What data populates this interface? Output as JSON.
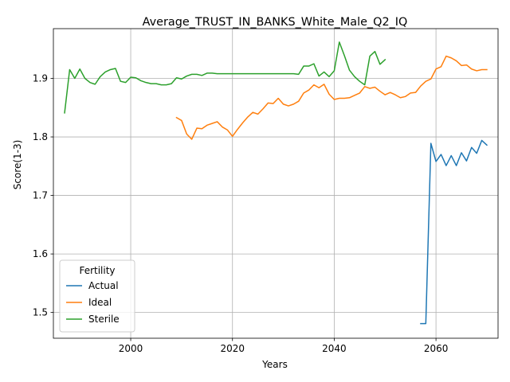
{
  "chart_data": {
    "type": "line",
    "title": "Average_TRUST_IN_BANKS_White_Male_Q2_IQ",
    "xlabel": "Years",
    "ylabel": "Score(1-3)",
    "xlim": [
      1984.8,
      2072.2
    ],
    "ylim": [
      1.456,
      1.985
    ],
    "xticks": [
      2000,
      2020,
      2040,
      2060
    ],
    "yticks": [
      1.5,
      1.6,
      1.7,
      1.8,
      1.9
    ],
    "grid": true,
    "legend": {
      "title": "Fertility",
      "placement": "lower-left"
    },
    "series": [
      {
        "name": "Actual",
        "color": "#1f77b4",
        "x": [
          2057,
          2058,
          2059,
          2060,
          2061,
          2062,
          2063,
          2064,
          2065,
          2066,
          2067,
          2068,
          2069,
          2070
        ],
        "y": [
          1.481,
          1.481,
          1.789,
          1.758,
          1.77,
          1.751,
          1.768,
          1.751,
          1.773,
          1.759,
          1.782,
          1.772,
          1.794,
          1.786
        ]
      },
      {
        "name": "Ideal",
        "color": "#ff7f0e",
        "x": [
          2009,
          2010,
          2011,
          2012,
          2013,
          2014,
          2015,
          2016,
          2017,
          2018,
          2019,
          2020,
          2021,
          2022,
          2023,
          2024,
          2025,
          2026,
          2027,
          2028,
          2029,
          2030,
          2031,
          2032,
          2033,
          2034,
          2035,
          2036,
          2037,
          2038,
          2039,
          2040,
          2041,
          2042,
          2043,
          2044,
          2045,
          2046,
          2047,
          2048,
          2049,
          2050,
          2051,
          2052,
          2053,
          2054,
          2055,
          2056,
          2057,
          2058,
          2059,
          2060,
          2061,
          2062,
          2063,
          2064,
          2065,
          2066,
          2067,
          2068,
          2069,
          2070
        ],
        "y": [
          1.833,
          1.828,
          1.805,
          1.796,
          1.815,
          1.814,
          1.82,
          1.823,
          1.826,
          1.817,
          1.812,
          1.801,
          1.813,
          1.824,
          1.834,
          1.842,
          1.839,
          1.848,
          1.858,
          1.857,
          1.866,
          1.856,
          1.853,
          1.856,
          1.861,
          1.875,
          1.88,
          1.889,
          1.884,
          1.89,
          1.873,
          1.864,
          1.866,
          1.866,
          1.867,
          1.871,
          1.875,
          1.886,
          1.883,
          1.885,
          1.878,
          1.872,
          1.876,
          1.872,
          1.867,
          1.869,
          1.875,
          1.876,
          1.887,
          1.895,
          1.899,
          1.916,
          1.92,
          1.938,
          1.935,
          1.93,
          1.922,
          1.923,
          1.916,
          1.913,
          1.915,
          1.915
        ]
      },
      {
        "name": "Sterile",
        "color": "#2ca02c",
        "x": [
          1987,
          1988,
          1989,
          1990,
          1991,
          1992,
          1993,
          1994,
          1995,
          1996,
          1997,
          1998,
          1999,
          2000,
          2001,
          2002,
          2003,
          2004,
          2005,
          2006,
          2007,
          2008,
          2009,
          2010,
          2011,
          2012,
          2013,
          2014,
          2015,
          2016,
          2017,
          2018,
          2019,
          2020,
          2021,
          2022,
          2023,
          2024,
          2025,
          2026,
          2027,
          2028,
          2029,
          2030,
          2031,
          2032,
          2033,
          2034,
          2035,
          2036,
          2037,
          2038,
          2039,
          2040,
          2041,
          2042,
          2043,
          2044,
          2045,
          2046,
          2047,
          2048,
          2049,
          2050
        ],
        "y": [
          1.841,
          1.915,
          1.9,
          1.916,
          1.9,
          1.893,
          1.89,
          1.903,
          1.911,
          1.915,
          1.917,
          1.895,
          1.893,
          1.902,
          1.901,
          1.896,
          1.893,
          1.891,
          1.891,
          1.889,
          1.889,
          1.891,
          1.901,
          1.899,
          1.904,
          1.907,
          1.907,
          1.905,
          1.909,
          1.909,
          1.908,
          1.908,
          1.908,
          1.908,
          1.908,
          1.908,
          1.908,
          1.908,
          1.908,
          1.908,
          1.908,
          1.908,
          1.908,
          1.908,
          1.908,
          1.908,
          1.907,
          1.921,
          1.921,
          1.925,
          1.904,
          1.911,
          1.903,
          1.913,
          1.962,
          1.939,
          1.914,
          1.903,
          1.895,
          1.889,
          1.938,
          1.946,
          1.924,
          1.932
        ]
      }
    ]
  }
}
